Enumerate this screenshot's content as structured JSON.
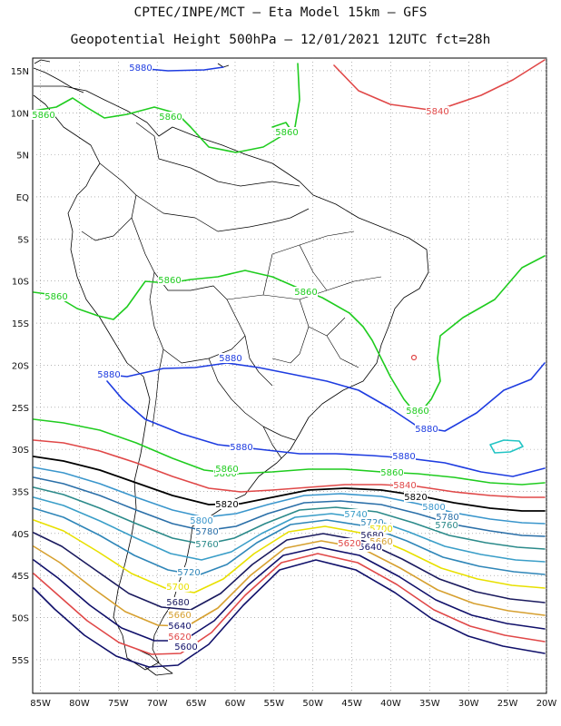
{
  "title": {
    "line1": "CPTEC/INPE/MCT –  Eta Model 15km – GFS",
    "line2": "Geopotential Height 500hPa – 12/01/2021 12UTC fct=28h"
  },
  "axes": {
    "x_ticks": [
      "85W",
      "80W",
      "75W",
      "70W",
      "65W",
      "60W",
      "55W",
      "50W",
      "45W",
      "40W",
      "35W",
      "30W",
      "25W",
      "20W"
    ],
    "y_ticks": [
      "15N",
      "10N",
      "5N",
      "EQ",
      "5S",
      "10S",
      "15S",
      "20S",
      "25S",
      "30S",
      "35S",
      "40S",
      "45S",
      "50S",
      "55S"
    ],
    "lon_range": [
      -86,
      -20
    ],
    "lat_range": [
      16.5,
      -59
    ],
    "grid": "dotted"
  },
  "contour_colors": {
    "5880": "#1e3ce0",
    "5860": "#1fcc1f",
    "5840": "#e04848",
    "5820": "#000000",
    "5800": "#3a96cc",
    "5780": "#2a6fa8",
    "5760": "#2b8a8a",
    "5740": "#3a9ec8",
    "5720": "#2f86b8",
    "5700": "#e8e000",
    "5680": "#1a1a5e",
    "5660": "#d6a030",
    "5640": "#10106a",
    "5620": "#e04848",
    "5600": "#10106a",
    "closed": "#22c4c4"
  },
  "contour_labels": [
    {
      "text": "5880",
      "color": "5880"
    },
    {
      "text": "5860",
      "color": "5860"
    },
    {
      "text": "5860",
      "color": "5860"
    },
    {
      "text": "5860",
      "color": "5860"
    },
    {
      "text": "5840",
      "color": "5840"
    },
    {
      "text": "5860",
      "color": "5860"
    },
    {
      "text": "5860",
      "color": "5860"
    },
    {
      "text": "5860",
      "color": "5860"
    },
    {
      "text": "5880",
      "color": "5880"
    },
    {
      "text": "5880",
      "color": "5880"
    },
    {
      "text": "5860",
      "color": "5860"
    },
    {
      "text": "5880",
      "color": "5880"
    },
    {
      "text": "5860",
      "color": "5860"
    },
    {
      "text": "5880",
      "color": "5880"
    },
    {
      "text": "5880",
      "color": "5880"
    },
    {
      "text": "5860",
      "color": "5860"
    },
    {
      "text": "5860",
      "color": "5860"
    },
    {
      "text": "5840",
      "color": "5840"
    },
    {
      "text": "5820",
      "color": "5820"
    },
    {
      "text": "5820",
      "color": "5820"
    },
    {
      "text": "5800",
      "color": "5800"
    },
    {
      "text": "5780",
      "color": "5780"
    },
    {
      "text": "5760",
      "color": "5760"
    },
    {
      "text": "5800",
      "color": "5800"
    },
    {
      "text": "5780",
      "color": "5780"
    },
    {
      "text": "5760",
      "color": "5760"
    },
    {
      "text": "5740",
      "color": "5740"
    },
    {
      "text": "5720",
      "color": "5720"
    },
    {
      "text": "5700",
      "color": "5700"
    },
    {
      "text": "5680",
      "color": "5680"
    },
    {
      "text": "5660",
      "color": "5660"
    },
    {
      "text": "5640",
      "color": "5640"
    },
    {
      "text": "5620",
      "color": "5620"
    },
    {
      "text": "5720",
      "color": "5720"
    },
    {
      "text": "5700",
      "color": "5700"
    },
    {
      "text": "5680",
      "color": "5680"
    },
    {
      "text": "5660",
      "color": "5660"
    },
    {
      "text": "5640",
      "color": "5640"
    },
    {
      "text": "5620",
      "color": "5620"
    },
    {
      "text": "5600",
      "color": "5600"
    }
  ]
}
